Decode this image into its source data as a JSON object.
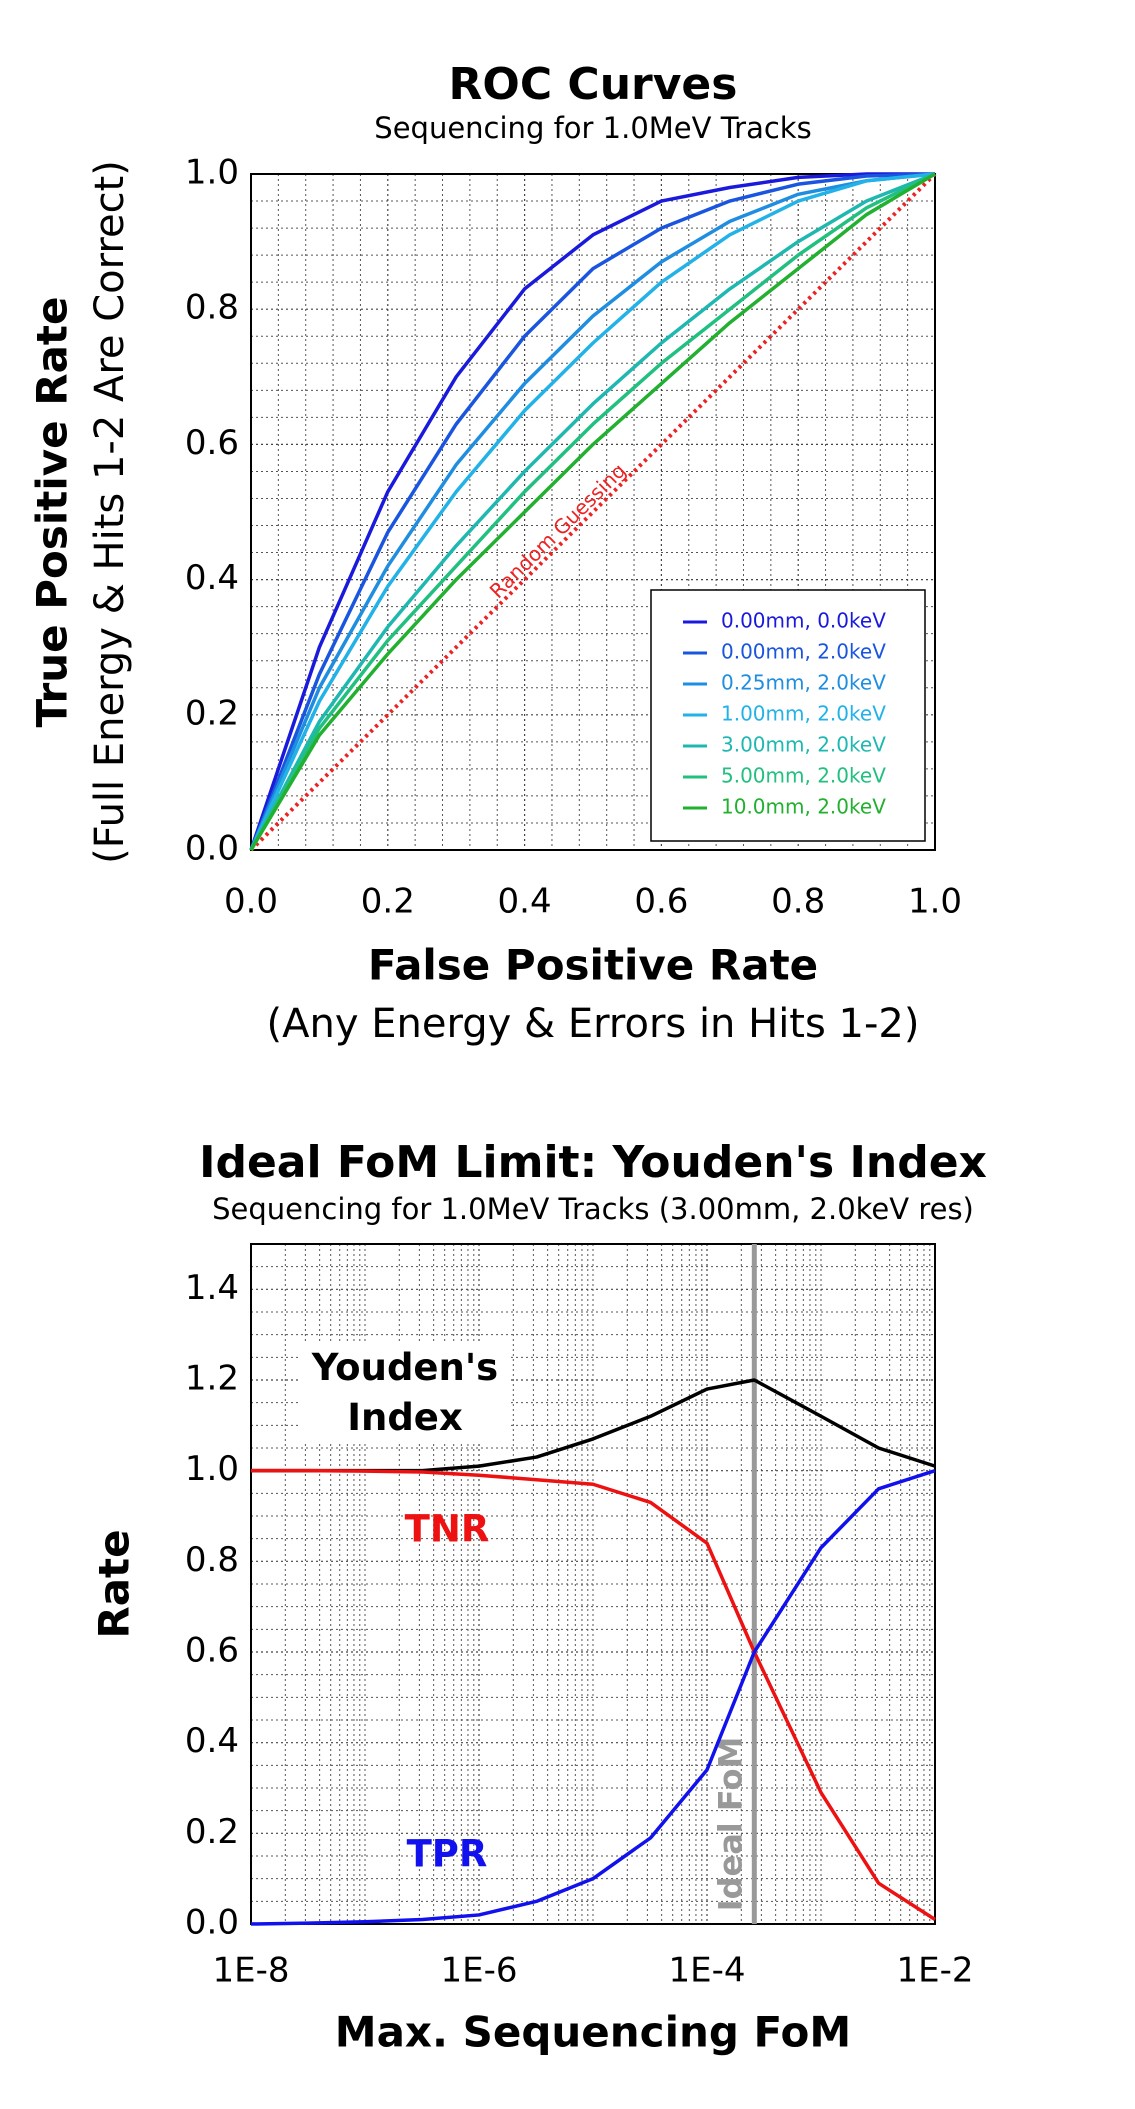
{
  "chart_data": [
    {
      "type": "line",
      "title": "ROC Curves",
      "subtitle": "Sequencing for 1.0MeV Tracks",
      "x_label": "False Positive Rate",
      "x_sublabel": "(Any Energy & Errors in Hits 1-2)",
      "y_label": "True Positive Rate",
      "y_sublabel": "(Full Energy & Hits 1-2 Are Correct)",
      "xlim": [
        0,
        1
      ],
      "ylim": [
        0,
        1
      ],
      "xticks": [
        {
          "value": 0,
          "label": "0.0"
        },
        0.2,
        0.4,
        0.6,
        0.8,
        {
          "value": 1,
          "label": "1.0"
        }
      ],
      "yticks": [
        {
          "value": 0,
          "label": "0.0"
        },
        0.2,
        0.4,
        0.6,
        0.8,
        {
          "value": 1,
          "label": "1.0"
        }
      ],
      "grid": true,
      "legend": "lower right",
      "x": [
        0,
        0.1,
        0.2,
        0.3,
        0.4,
        0.5,
        0.6,
        0.7,
        0.8,
        0.9,
        1
      ],
      "series": [
        {
          "name": "0.00mm, 0.0keV",
          "color": "#1a1adc",
          "values": [
            0,
            0.3,
            0.53,
            0.7,
            0.83,
            0.91,
            0.96,
            0.98,
            0.995,
            1,
            1
          ]
        },
        {
          "name": "0.00mm, 2.0keV",
          "color": "#1a55e0",
          "values": [
            0,
            0.26,
            0.47,
            0.63,
            0.76,
            0.86,
            0.92,
            0.96,
            0.985,
            0.997,
            1
          ]
        },
        {
          "name": "0.25mm, 2.0keV",
          "color": "#1f8ee0",
          "values": [
            0,
            0.24,
            0.42,
            0.57,
            0.69,
            0.79,
            0.87,
            0.93,
            0.97,
            0.99,
            1
          ]
        },
        {
          "name": "1.00mm, 2.0keV",
          "color": "#22b2e8",
          "values": [
            0,
            0.22,
            0.39,
            0.53,
            0.65,
            0.75,
            0.84,
            0.91,
            0.96,
            0.99,
            1
          ]
        },
        {
          "name": "3.00mm, 2.0keV",
          "color": "#1fb8b0",
          "values": [
            0,
            0.19,
            0.33,
            0.45,
            0.56,
            0.66,
            0.75,
            0.83,
            0.9,
            0.96,
            1
          ]
        },
        {
          "name": "5.00mm, 2.0keV",
          "color": "#22c080",
          "values": [
            0,
            0.18,
            0.31,
            0.42,
            0.53,
            0.63,
            0.72,
            0.8,
            0.88,
            0.95,
            1
          ]
        },
        {
          "name": "10.0mm, 2.0keV",
          "color": "#22b030",
          "values": [
            0,
            0.17,
            0.29,
            0.4,
            0.5,
            0.6,
            0.69,
            0.78,
            0.86,
            0.94,
            1
          ]
        }
      ],
      "reference_line": {
        "label": "Random Guessing",
        "color": "#ee2222",
        "x": [
          0,
          1
        ],
        "y": [
          0,
          1
        ]
      }
    },
    {
      "type": "line",
      "title": "Ideal FoM Limit: Youden's Index",
      "subtitle": "Sequencing for 1.0MeV Tracks (3.00mm, 2.0keV res)",
      "x_label": "Max. Sequencing FoM",
      "y_label": "Rate",
      "x_log": true,
      "xlim": [
        1e-08,
        0.01
      ],
      "ylim": [
        0,
        1.5
      ],
      "xticks": [
        {
          "value": 1e-08,
          "label": "1E-8"
        },
        {
          "value": 1e-06,
          "label": "1E-6"
        },
        {
          "value": 0.0001,
          "label": "1E-4"
        },
        {
          "value": 0.01,
          "label": "1E-2"
        }
      ],
      "yticks": [
        {
          "value": 0,
          "label": "0.0"
        },
        0.2,
        0.4,
        0.6,
        0.8,
        {
          "value": 1,
          "label": "1.0"
        },
        1.2,
        1.4
      ],
      "grid": true,
      "x": [
        1e-08,
        3.2e-08,
        1e-07,
        3.2e-07,
        1e-06,
        3.2e-06,
        1e-05,
        3.2e-05,
        0.0001,
        0.00026,
        0.001,
        0.0032,
        0.01
      ],
      "series": [
        {
          "name": "Youden's Index",
          "color": "#000000",
          "values": [
            1,
            1,
            1,
            1,
            1.01,
            1.03,
            1.07,
            1.12,
            1.18,
            1.2,
            1.12,
            1.05,
            1.01
          ]
        },
        {
          "name": "TNR",
          "color": "#ee1111",
          "values": [
            1,
            1,
            0.999,
            0.997,
            0.99,
            0.98,
            0.97,
            0.93,
            0.84,
            0.6,
            0.29,
            0.09,
            0.01
          ]
        },
        {
          "name": "TPR",
          "color": "#1111ee",
          "values": [
            0,
            0.002,
            0.005,
            0.01,
            0.02,
            0.05,
            0.1,
            0.19,
            0.34,
            0.6,
            0.83,
            0.96,
            1
          ]
        }
      ],
      "vertical_line": {
        "label": "Ideal FoM",
        "color": "#999999",
        "x": 0.00026
      }
    }
  ]
}
